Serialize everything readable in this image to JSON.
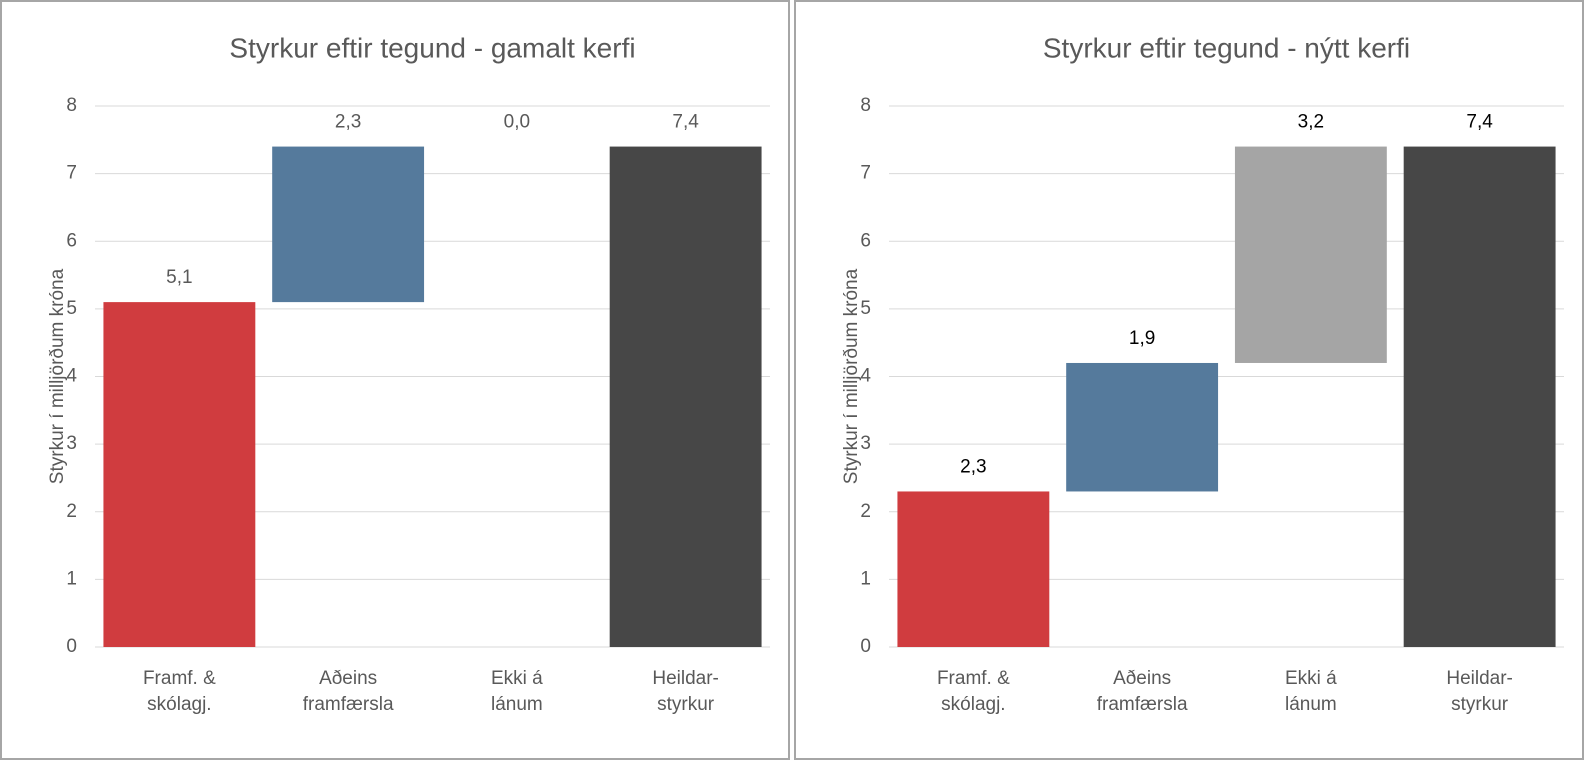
{
  "chart_data": [
    {
      "type": "waterfall",
      "title": "Styrkur eftir tegund - gamalt kerfi",
      "y_label": "Styrkur í milljörðum króna",
      "categories": [
        [
          "Framf. &",
          "skólagj."
        ],
        [
          "Aðeins",
          "framfærsla"
        ],
        [
          "Ekki á",
          "lánum"
        ],
        [
          "Heildar-",
          "styrkur"
        ]
      ],
      "values": [
        5.1,
        2.3,
        0.0,
        7.4
      ],
      "value_labels": [
        "5,1",
        "2,3",
        "0,0",
        "7,4"
      ],
      "colors": [
        "#d03c3f",
        "#557a9c",
        "#a5a5a5",
        "#474747"
      ],
      "label_color": "#595959",
      "ylim": [
        0,
        8
      ],
      "yticks": [
        0,
        1,
        2,
        3,
        4,
        5,
        6,
        7,
        8
      ],
      "grid": true
    },
    {
      "type": "waterfall",
      "title": "Styrkur eftir tegund - nýtt kerfi",
      "y_label": "Styrkur í milljörðum króna",
      "categories": [
        [
          "Framf. &",
          "skólagj."
        ],
        [
          "Aðeins",
          "framfærsla"
        ],
        [
          "Ekki á",
          "lánum"
        ],
        [
          "Heildar-",
          "styrkur"
        ]
      ],
      "values": [
        2.3,
        1.9,
        3.2,
        7.4
      ],
      "value_labels": [
        "2,3",
        "1,9",
        "3,2",
        "7,4"
      ],
      "colors": [
        "#d03c3f",
        "#557a9c",
        "#a5a5a5",
        "#474747"
      ],
      "label_color": "#000000",
      "ylim": [
        0,
        8
      ],
      "yticks": [
        0,
        1,
        2,
        3,
        4,
        5,
        6,
        7,
        8
      ],
      "grid": true
    }
  ]
}
